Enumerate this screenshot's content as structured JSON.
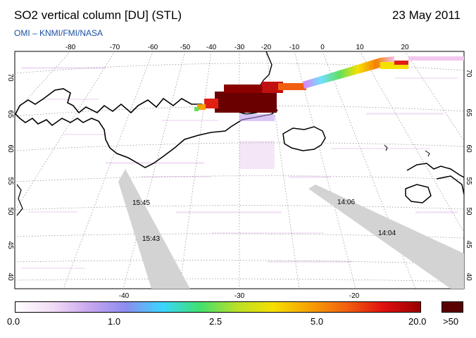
{
  "header": {
    "title": "SO2 vertical column [DU] (STL)",
    "date": "23 May 2011",
    "credit": "OMI  –  KNMI/FMI/NASA"
  },
  "map": {
    "top_lon_labels": [
      "-80",
      "-70",
      "-60",
      "-50",
      "-40",
      "-30",
      "-20",
      "-10",
      "0",
      "10",
      "20"
    ],
    "bottom_lon_labels": [
      "-40",
      "-30",
      "-20"
    ],
    "left_lat_labels": [
      "70",
      "65",
      "60",
      "55",
      "50",
      "45",
      "40"
    ],
    "right_lat_labels": [
      "70",
      "65",
      "60",
      "55",
      "50",
      "45",
      "40"
    ],
    "orbit_times": [
      "15:45",
      "15:43",
      "14:06",
      "14:04"
    ],
    "no_data_color": "#d3d3d3",
    "coast_color": "#000000",
    "grid_color": "#888888"
  },
  "colorbar": {
    "tick_labels": [
      "0.0",
      "1.0",
      "2.5",
      "5.0",
      "20.0"
    ],
    "max_label": ">50",
    "max_color": "#5a0000",
    "stops": [
      "#ffffff",
      "#f3dcf6",
      "#c9a6ef",
      "#8c8cf0",
      "#3ad6ff",
      "#40e070",
      "#b8e02a",
      "#f6e000",
      "#f6a000",
      "#f06010",
      "#e01010",
      "#9a0000"
    ]
  }
}
